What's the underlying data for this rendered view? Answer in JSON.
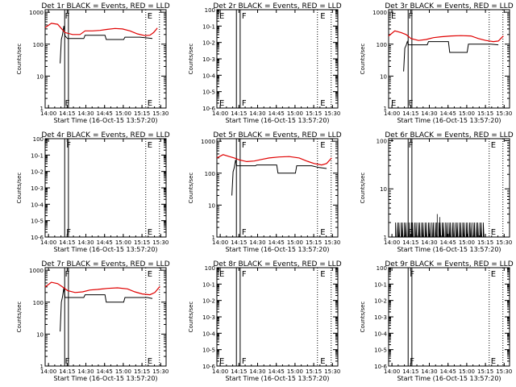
{
  "colors": {
    "events": "#000000",
    "lld": "#e00000",
    "axes": "#000000",
    "background": "#ffffff"
  },
  "chart_data": [
    {
      "type": "line",
      "title": "Det 1r BLACK = Events, RED = LLD",
      "xlabel": "Start Time (16-Oct-15 13:57:20)",
      "ylabel": "Counts/sec",
      "xtick_labels": [
        "14:00",
        "14:15",
        "14:30",
        "14:45",
        "15:00",
        "15:15",
        "15:30"
      ],
      "ytick_labels": [
        "1",
        "10",
        "100",
        "1000"
      ],
      "ylim": [
        1,
        1200
      ],
      "yscale": "log",
      "markers": [
        {
          "label": "F",
          "time": "14:12"
        },
        {
          "label": "E",
          "time": "15:18"
        }
      ],
      "vlines_solid": [
        "14:13",
        "14:16"
      ],
      "vlines_dotted": [
        "15:18",
        "15:29"
      ],
      "series": [
        {
          "name": "Events",
          "color": "#000000",
          "points": [
            [
              12,
              25
            ],
            [
              13,
              140
            ],
            [
              14,
              200
            ],
            [
              15,
              370
            ],
            [
              16,
              180
            ],
            [
              18,
              150
            ],
            [
              22,
              150
            ],
            [
              28,
              150
            ],
            [
              31,
              150
            ],
            [
              32,
              190
            ],
            [
              38,
              190
            ],
            [
              44,
              190
            ],
            [
              48,
              190
            ],
            [
              49,
              140
            ],
            [
              56,
              140
            ],
            [
              63,
              140
            ],
            [
              64,
              165
            ],
            [
              70,
              165
            ],
            [
              76,
              165
            ],
            [
              80,
              160
            ],
            [
              86,
              150
            ]
          ]
        },
        {
          "name": "LLD",
          "color": "#e00000",
          "points": [
            [
              0,
              330
            ],
            [
              5,
              450
            ],
            [
              10,
              420
            ],
            [
              13,
              310
            ],
            [
              16,
              230
            ],
            [
              22,
              200
            ],
            [
              28,
              200
            ],
            [
              32,
              260
            ],
            [
              38,
              260
            ],
            [
              44,
              270
            ],
            [
              50,
              290
            ],
            [
              56,
              310
            ],
            [
              62,
              300
            ],
            [
              68,
              260
            ],
            [
              74,
              210
            ],
            [
              80,
              185
            ],
            [
              84,
              190
            ],
            [
              87,
              230
            ],
            [
              90,
              320
            ]
          ]
        }
      ]
    },
    {
      "type": "line",
      "title": "Det 2r BLACK = Events, RED = LLD",
      "xlabel": "Start Time (16-Oct-15 13:57:20)",
      "ylabel": "Counts/sec",
      "xtick_labels": [
        "14:00",
        "14:15",
        "14:30",
        "14:45",
        "15:00",
        "15:15",
        "15:30"
      ],
      "ytick_labels": [
        "10-6",
        "10-5",
        "10-4",
        "10-3",
        "10-2",
        "10-1",
        "100"
      ],
      "ylim": [
        1e-06,
        1
      ],
      "yscale": "log",
      "markers": [
        {
          "label": "E",
          "time": "13:58"
        },
        {
          "label": "F",
          "time": "14:16"
        },
        {
          "label": "E",
          "time": "15:19"
        }
      ],
      "vlines_solid": [
        "14:13",
        "14:16"
      ],
      "vlines_dotted": [
        "15:18",
        "15:29"
      ],
      "series": []
    },
    {
      "type": "line",
      "title": "Det 3r BLACK = Events, RED = LLD",
      "xlabel": "Start Time (16-Oct-15 13:57:20)",
      "ylabel": "Counts/sec",
      "xtick_labels": [
        "14:00",
        "14:15",
        "14:30",
        "14:45",
        "15:00",
        "15:15",
        "15:30"
      ],
      "ytick_labels": [
        "1",
        "10",
        "100",
        "1000"
      ],
      "ylim": [
        1,
        1200
      ],
      "yscale": "log",
      "markers": [
        {
          "label": "E",
          "time": "13:58"
        },
        {
          "label": "F",
          "time": "14:12"
        }
      ],
      "vlines_solid": [
        "14:13",
        "14:16"
      ],
      "vlines_dotted": [
        "15:18",
        "15:29"
      ],
      "series": [
        {
          "name": "Events",
          "color": "#000000",
          "points": [
            [
              12,
              14
            ],
            [
              13,
              75
            ],
            [
              14,
              90
            ],
            [
              15,
              120
            ],
            [
              16,
              95
            ],
            [
              22,
              95
            ],
            [
              31,
              95
            ],
            [
              32,
              120
            ],
            [
              38,
              120
            ],
            [
              44,
              120
            ],
            [
              48,
              120
            ],
            [
              49,
              55
            ],
            [
              56,
              55
            ],
            [
              63,
              55
            ],
            [
              64,
              100
            ],
            [
              70,
              100
            ],
            [
              76,
              100
            ],
            [
              82,
              100
            ],
            [
              88,
              95
            ]
          ]
        },
        {
          "name": "LLD",
          "color": "#e00000",
          "points": [
            [
              0,
              180
            ],
            [
              5,
              260
            ],
            [
              10,
              230
            ],
            [
              14,
              200
            ],
            [
              18,
              150
            ],
            [
              24,
              130
            ],
            [
              30,
              140
            ],
            [
              36,
              160
            ],
            [
              42,
              170
            ],
            [
              50,
              180
            ],
            [
              58,
              185
            ],
            [
              66,
              180
            ],
            [
              72,
              150
            ],
            [
              78,
              130
            ],
            [
              84,
              120
            ],
            [
              88,
              125
            ],
            [
              92,
              180
            ]
          ]
        }
      ]
    },
    {
      "type": "line",
      "title": "Det 4r BLACK = Events, RED = LLD",
      "xlabel": "Start Time (16-Oct-15 13:57:20)",
      "ylabel": "Counts/sec",
      "xtick_labels": [
        "14:00",
        "14:15",
        "14:30",
        "14:45",
        "15:00",
        "15:15",
        "15:30"
      ],
      "ytick_labels": [
        "10-6",
        "10-5",
        "10-4",
        "10-3",
        "10-2",
        "10-1",
        "100"
      ],
      "ylim": [
        1e-06,
        1
      ],
      "yscale": "log",
      "markers": [
        {
          "label": "F",
          "time": "14:13"
        },
        {
          "label": "E",
          "time": "15:18"
        }
      ],
      "vlines_solid": [
        "14:13",
        "14:16"
      ],
      "vlines_dotted": [
        "15:18",
        "15:29"
      ],
      "series": []
    },
    {
      "type": "line",
      "title": "Det 5r BLACK = Events, RED = LLD",
      "xlabel": "Start Time (16-Oct-15 13:57:20)",
      "ylabel": "Counts/sec",
      "xtick_labels": [
        "14:00",
        "14:15",
        "14:30",
        "14:45",
        "15:00",
        "15:15",
        "15:30"
      ],
      "ytick_labels": [
        "1",
        "10",
        "100",
        "1000"
      ],
      "ylim": [
        1,
        1200
      ],
      "yscale": "log",
      "markers": [
        {
          "label": "F",
          "time": "14:16"
        },
        {
          "label": "E",
          "time": "15:19"
        }
      ],
      "vlines_solid": [
        "14:13",
        "14:16"
      ],
      "vlines_dotted": [
        "15:18",
        "15:29"
      ],
      "series": [
        {
          "name": "Events",
          "color": "#000000",
          "points": [
            [
              12,
              20
            ],
            [
              13,
              110
            ],
            [
              14,
              150
            ],
            [
              15,
              260
            ],
            [
              16,
              170
            ],
            [
              22,
              170
            ],
            [
              31,
              170
            ],
            [
              32,
              180
            ],
            [
              38,
              180
            ],
            [
              44,
              180
            ],
            [
              48,
              180
            ],
            [
              49,
              100
            ],
            [
              56,
              100
            ],
            [
              63,
              100
            ],
            [
              64,
              170
            ],
            [
              70,
              170
            ],
            [
              76,
              170
            ],
            [
              82,
              150
            ],
            [
              88,
              140
            ]
          ]
        },
        {
          "name": "LLD",
          "color": "#e00000",
          "points": [
            [
              0,
              300
            ],
            [
              5,
              380
            ],
            [
              10,
              330
            ],
            [
              14,
              300
            ],
            [
              18,
              260
            ],
            [
              24,
              230
            ],
            [
              30,
              240
            ],
            [
              36,
              270
            ],
            [
              42,
              300
            ],
            [
              50,
              320
            ],
            [
              58,
              330
            ],
            [
              66,
              300
            ],
            [
              72,
              240
            ],
            [
              78,
              200
            ],
            [
              84,
              180
            ],
            [
              88,
              200
            ],
            [
              92,
              300
            ]
          ]
        }
      ]
    },
    {
      "type": "line",
      "title": "Det 6r BLACK = Events, RED = LLD",
      "xlabel": "Start Time (16-Oct-15 13:57:20)",
      "ylabel": "Counts/sec",
      "xtick_labels": [
        "14:00",
        "14:15",
        "14:30",
        "14:45",
        "15:00",
        "15:15",
        "15:30"
      ],
      "ytick_labels": [
        "1",
        "10",
        "100"
      ],
      "ylim": [
        1,
        110
      ],
      "yscale": "log",
      "markers": [
        {
          "label": "F",
          "time": "14:12"
        },
        {
          "label": "E",
          "time": "15:18"
        }
      ],
      "vlines_solid": [
        "14:13",
        "14:16"
      ],
      "vlines_dotted": [
        "15:18",
        "15:29"
      ],
      "series": [
        {
          "name": "Events",
          "color": "#000000",
          "spiky": true,
          "range": [
            5,
            77
          ],
          "points": [
            [
              5,
              1
            ],
            [
              77,
              1
            ]
          ]
        }
      ]
    },
    {
      "type": "line",
      "title": "Det 7r BLACK = Events, RED = LLD",
      "xlabel": "Start Time (16-Oct-15 13:57:20)",
      "ylabel": "Counts/sec",
      "xtick_labels": [
        "14:00",
        "14:15",
        "14:30",
        "14:45",
        "15:00",
        "15:15",
        "15:30"
      ],
      "ytick_labels": [
        "1",
        "10",
        "100",
        "1000"
      ],
      "ylim": [
        1,
        1200
      ],
      "yscale": "log",
      "markers": [
        {
          "label": "F",
          "time": "14:12"
        },
        {
          "label": "E",
          "time": "15:18"
        }
      ],
      "vlines_solid": [
        "14:13",
        "14:16"
      ],
      "vlines_dotted": [
        "15:18",
        "15:29"
      ],
      "series": [
        {
          "name": "Events",
          "color": "#000000",
          "points": [
            [
              12,
              12
            ],
            [
              13,
              100
            ],
            [
              14,
              150
            ],
            [
              15,
              280
            ],
            [
              16,
              140
            ],
            [
              22,
              140
            ],
            [
              31,
              140
            ],
            [
              32,
              170
            ],
            [
              38,
              170
            ],
            [
              44,
              170
            ],
            [
              48,
              170
            ],
            [
              49,
              100
            ],
            [
              56,
              100
            ],
            [
              63,
              100
            ],
            [
              64,
              140
            ],
            [
              70,
              140
            ],
            [
              76,
              140
            ],
            [
              82,
              140
            ],
            [
              86,
              130
            ]
          ]
        },
        {
          "name": "LLD",
          "color": "#e00000",
          "points": [
            [
              0,
              300
            ],
            [
              5,
              420
            ],
            [
              10,
              380
            ],
            [
              14,
              300
            ],
            [
              18,
              230
            ],
            [
              24,
              200
            ],
            [
              30,
              210
            ],
            [
              36,
              240
            ],
            [
              42,
              250
            ],
            [
              50,
              270
            ],
            [
              58,
              280
            ],
            [
              66,
              260
            ],
            [
              72,
              210
            ],
            [
              78,
              180
            ],
            [
              84,
              170
            ],
            [
              88,
              200
            ],
            [
              92,
              310
            ]
          ]
        }
      ]
    },
    {
      "type": "line",
      "title": "Det 8r BLACK = Events, RED = LLD",
      "xlabel": "Start Time (16-Oct-15 13:57:20)",
      "ylabel": "Counts/sec",
      "xtick_labels": [
        "14:00",
        "14:15",
        "14:30",
        "14:45",
        "15:00",
        "15:15",
        "15:30"
      ],
      "ytick_labels": [
        "10-6",
        "10-5",
        "10-4",
        "10-3",
        "10-2",
        "10-1",
        "100"
      ],
      "ylim": [
        1e-06,
        1
      ],
      "yscale": "log",
      "markers": [
        {
          "label": "E",
          "time": "13:58"
        },
        {
          "label": "F",
          "time": "14:16"
        },
        {
          "label": "E",
          "time": "15:19"
        }
      ],
      "vlines_solid": [
        "14:13",
        "14:16"
      ],
      "vlines_dotted": [
        "15:18",
        "15:29"
      ],
      "series": []
    },
    {
      "type": "line",
      "title": "Det 9r BLACK = Events, RED = LLD",
      "xlabel": "Start Time (16-Oct-15 13:57:20)",
      "ylabel": "Counts/sec",
      "xtick_labels": [
        "14:00",
        "14:15",
        "14:30",
        "14:45",
        "15:00",
        "15:15",
        "15:30"
      ],
      "ytick_labels": [
        "10-6",
        "10-5",
        "10-4",
        "10-3",
        "10-2",
        "10-1",
        "100"
      ],
      "ylim": [
        1e-06,
        1
      ],
      "yscale": "log",
      "markers": [
        {
          "label": "F",
          "time": "14:13"
        },
        {
          "label": "E",
          "time": "15:18"
        }
      ],
      "vlines_solid": [
        "14:13",
        "14:16"
      ],
      "vlines_dotted": [
        "15:18",
        "15:29"
      ],
      "series": []
    }
  ]
}
